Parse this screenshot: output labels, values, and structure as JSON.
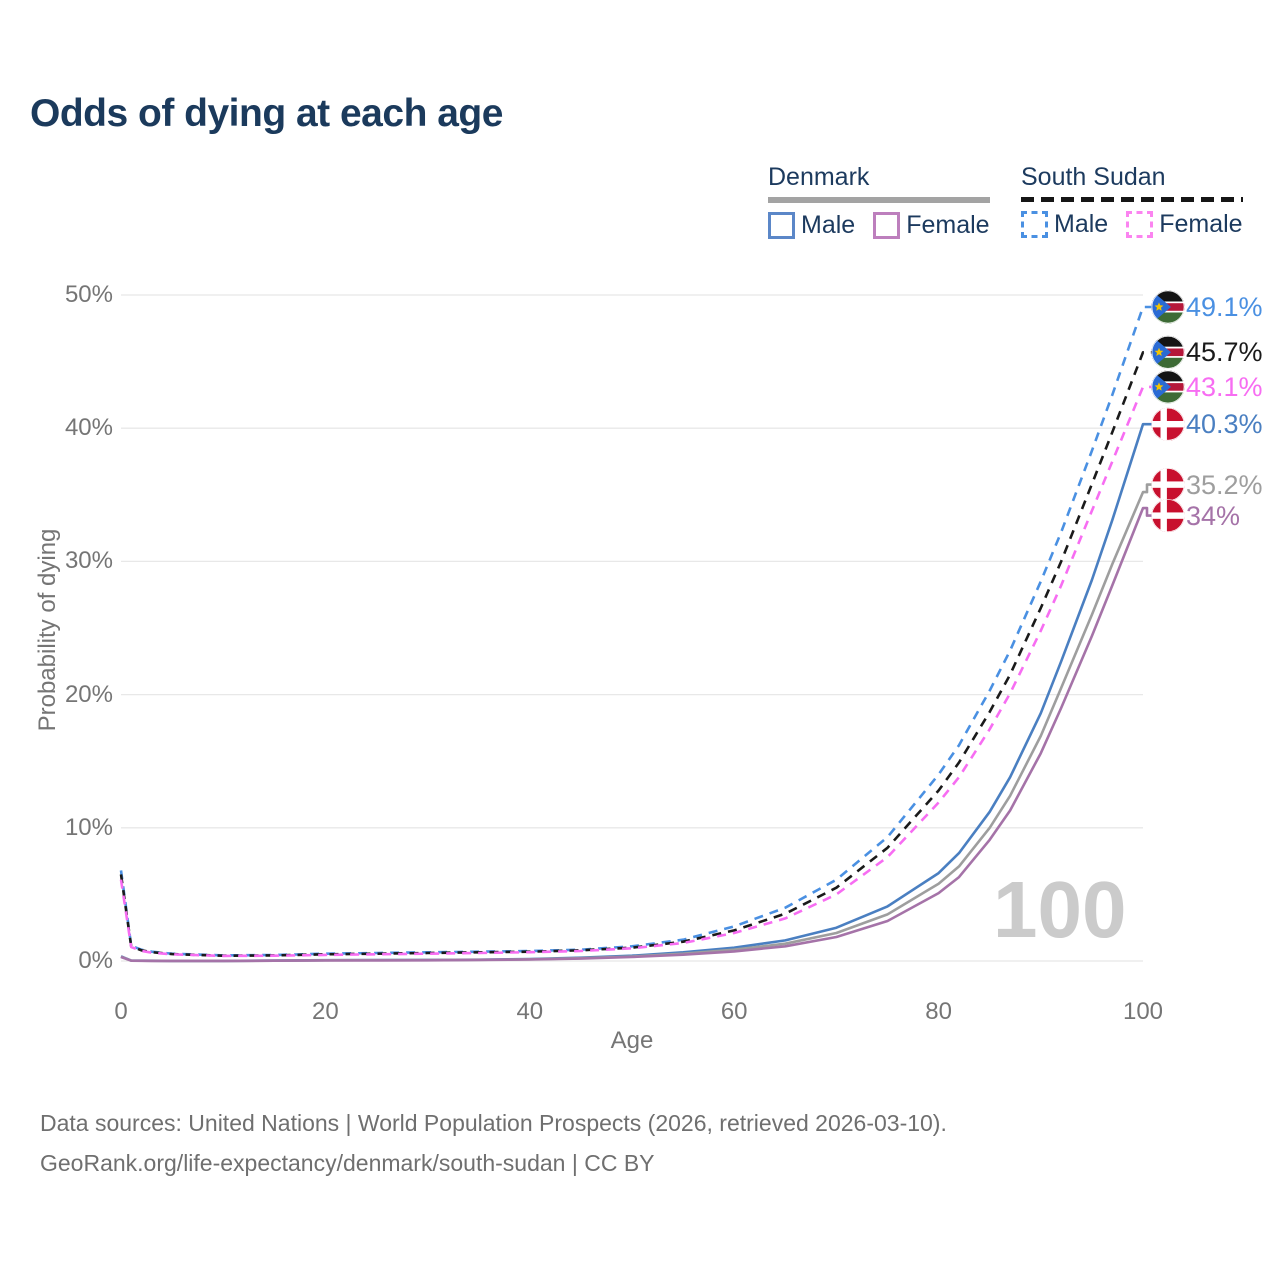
{
  "title": "Odds of dying at each age",
  "watermark_age": "100",
  "legend": {
    "groups": [
      {
        "country": "Denmark",
        "line_style": "solid",
        "rule_color": "#a3a3a3",
        "items": [
          {
            "label": "Male",
            "swatch_color": "#5b87c8",
            "dashed": false
          },
          {
            "label": "Female",
            "swatch_color": "#bd7fbd",
            "dashed": false
          }
        ]
      },
      {
        "country": "South Sudan",
        "line_style": "dashed",
        "rule_color": "#161616",
        "items": [
          {
            "label": "Male",
            "swatch_color": "#4a90e2",
            "dashed": true
          },
          {
            "label": "Female",
            "swatch_color": "#fb84f0",
            "dashed": true
          }
        ]
      }
    ]
  },
  "axes": {
    "x_label": "Age",
    "y_label": "Probability of dying",
    "x_ticks": [
      0,
      20,
      40,
      60,
      80,
      100
    ],
    "y_ticks": [
      0,
      10,
      20,
      30,
      40,
      50
    ],
    "y_tick_labels": [
      "0%",
      "10%",
      "20%",
      "30%",
      "40%",
      "50%"
    ],
    "grid_color": "#e8e8e8"
  },
  "footer": {
    "line1": "Data sources: United Nations | World Population Prospects (2026, retrieved 2026-03-10).",
    "line2": "GeoRank.org/life-expectancy/denmark/south-sudan | CC BY"
  },
  "chart_data": {
    "type": "line",
    "title": "Odds of dying at each age",
    "xlabel": "Age",
    "ylabel": "Probability of dying",
    "xlim": [
      0,
      100
    ],
    "ylim": [
      0,
      50
    ],
    "grid": true,
    "x": [
      0,
      1,
      2,
      3,
      5,
      10,
      15,
      20,
      25,
      30,
      35,
      40,
      45,
      50,
      55,
      60,
      65,
      70,
      75,
      80,
      82,
      85,
      87,
      90,
      92,
      95,
      97,
      100
    ],
    "series": [
      {
        "name": "South Sudan Male",
        "country": "South Sudan",
        "sex": "Male",
        "color": "#4a90e2",
        "dash": "dashed",
        "end_value": 49.1,
        "end_label": "49.1%",
        "values": [
          6.8,
          1.15,
          0.85,
          0.7,
          0.55,
          0.42,
          0.45,
          0.55,
          0.6,
          0.65,
          0.7,
          0.75,
          0.85,
          1.1,
          1.6,
          2.6,
          4.0,
          6.1,
          9.3,
          14.0,
          16.2,
          20.3,
          23.3,
          28.5,
          32.2,
          38.3,
          42.5,
          49.1
        ]
      },
      {
        "name": "South Sudan Both sexes",
        "country": "South Sudan",
        "sex": "All",
        "color": "#1a1a1a",
        "dash": "dashed",
        "end_value": 45.7,
        "end_label": "45.7%",
        "values": [
          6.5,
          1.1,
          0.8,
          0.66,
          0.52,
          0.4,
          0.42,
          0.5,
          0.55,
          0.6,
          0.65,
          0.7,
          0.8,
          1.0,
          1.45,
          2.3,
          3.55,
          5.5,
          8.5,
          12.8,
          14.9,
          18.7,
          21.5,
          26.5,
          30.0,
          35.8,
          39.7,
          45.7
        ]
      },
      {
        "name": "South Sudan Female",
        "country": "South Sudan",
        "sex": "Female",
        "color": "#f76df2",
        "dash": "dashed",
        "end_value": 43.1,
        "end_label": "43.1%",
        "values": [
          6.1,
          1.05,
          0.76,
          0.62,
          0.5,
          0.38,
          0.4,
          0.46,
          0.5,
          0.55,
          0.6,
          0.66,
          0.75,
          0.95,
          1.35,
          2.1,
          3.2,
          5.0,
          7.8,
          11.9,
          13.8,
          17.4,
          20.1,
          24.8,
          28.2,
          33.8,
          37.5,
          43.1
        ]
      },
      {
        "name": "Denmark Male",
        "country": "Denmark",
        "sex": "Male",
        "color": "#4a7fc1",
        "dash": "solid",
        "end_value": 40.3,
        "end_label": "40.3%",
        "values": [
          0.35,
          0.03,
          0.02,
          0.02,
          0.01,
          0.01,
          0.03,
          0.06,
          0.07,
          0.08,
          0.1,
          0.15,
          0.25,
          0.4,
          0.65,
          1.0,
          1.55,
          2.5,
          4.1,
          6.6,
          8.1,
          11.2,
          13.8,
          18.6,
          22.5,
          28.6,
          33.1,
          40.3
        ]
      },
      {
        "name": "Denmark Both sexes",
        "country": "Denmark",
        "sex": "All",
        "color": "#9e9e9e",
        "dash": "solid",
        "end_value": 35.2,
        "end_label": "35.2%",
        "values": [
          0.32,
          0.03,
          0.02,
          0.015,
          0.01,
          0.01,
          0.025,
          0.05,
          0.06,
          0.07,
          0.09,
          0.13,
          0.21,
          0.34,
          0.55,
          0.85,
          1.3,
          2.1,
          3.5,
          5.8,
          7.1,
          10.0,
          12.4,
          16.9,
          20.5,
          26.0,
          29.8,
          35.2
        ]
      },
      {
        "name": "Denmark Female",
        "country": "Denmark",
        "sex": "Female",
        "color": "#a573a8",
        "dash": "solid",
        "end_value": 34.0,
        "end_label": "34%",
        "values": [
          0.3,
          0.025,
          0.015,
          0.01,
          0.01,
          0.01,
          0.02,
          0.035,
          0.04,
          0.05,
          0.08,
          0.11,
          0.18,
          0.3,
          0.47,
          0.72,
          1.1,
          1.8,
          3.0,
          5.1,
          6.3,
          9.1,
          11.3,
          15.6,
          19.0,
          24.4,
          28.2,
          34.0
        ]
      }
    ],
    "flag_colors": {
      "denmark_red": "#c8102e",
      "south_sudan_black": "#141414",
      "south_sudan_red": "#b5173a",
      "south_sudan_green": "#3d6b35",
      "south_sudan_blue": "#2a6bd4",
      "south_sudan_star": "#f5c400",
      "white": "#ffffff"
    }
  }
}
